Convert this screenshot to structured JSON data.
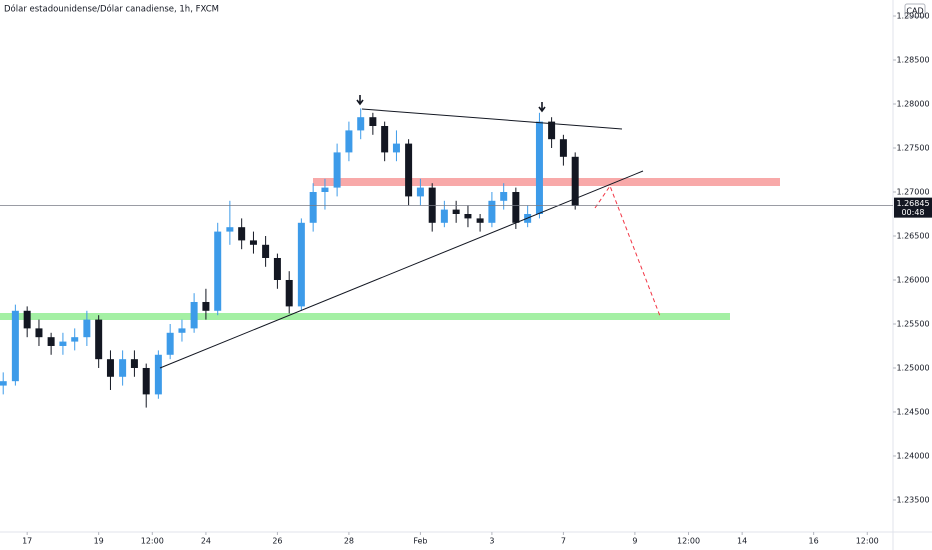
{
  "chart_data": {
    "type": "candlestick",
    "title": "Dólar estadounidense/Dólar canadiense, 1h, FXCM",
    "currency": "CAD",
    "countdown": "00:48",
    "up_color": "#3d9be9",
    "down_color": "#131722",
    "x": [
      -0.67,
      -0.33,
      0,
      0.33,
      0.67,
      1,
      1.33,
      1.67,
      2,
      2.33,
      2.67,
      3,
      3.33,
      3.67,
      4,
      4.33,
      4.67,
      5,
      5.33,
      5.67,
      6,
      6.33,
      6.67,
      7,
      7.33,
      7.67,
      8,
      8.33,
      8.67,
      9,
      9.33,
      9.67,
      10,
      10.33,
      10.67,
      11,
      11.33,
      11.67,
      12,
      12.33,
      12.67,
      13,
      13.33,
      13.67,
      14,
      14.33,
      14.67,
      15,
      15.33
    ],
    "open": [
      1.248,
      1.2485,
      1.2565,
      1.2545,
      1.2535,
      1.2525,
      1.253,
      1.2535,
      1.2555,
      1.251,
      1.249,
      1.251,
      1.25,
      1.247,
      1.2515,
      1.254,
      1.2545,
      1.2575,
      1.2565,
      1.2655,
      1.266,
      1.2645,
      1.264,
      1.2625,
      1.26,
      1.257,
      1.2665,
      1.27,
      1.2705,
      1.2745,
      1.277,
      1.2785,
      1.2775,
      1.2745,
      1.2755,
      1.2695,
      1.2705,
      1.2665,
      1.268,
      1.2675,
      1.267,
      1.2665,
      1.269,
      1.27,
      1.2665,
      1.2675,
      1.278,
      1.276,
      1.274
    ],
    "high": [
      1.2495,
      1.2572,
      1.257,
      1.2555,
      1.254,
      1.254,
      1.2545,
      1.2565,
      1.256,
      1.252,
      1.252,
      1.252,
      1.2505,
      1.252,
      1.255,
      1.2555,
      1.2585,
      1.259,
      1.2665,
      1.269,
      1.267,
      1.2655,
      1.265,
      1.263,
      1.261,
      1.267,
      1.271,
      1.2715,
      1.2755,
      1.278,
      1.2795,
      1.279,
      1.278,
      1.277,
      1.276,
      1.2715,
      1.271,
      1.269,
      1.269,
      1.2685,
      1.2675,
      1.27,
      1.271,
      1.2705,
      1.2685,
      1.279,
      1.2785,
      1.2765,
      1.2745
    ],
    "low": [
      1.247,
      1.248,
      1.2535,
      1.2525,
      1.2515,
      1.2515,
      1.252,
      1.2525,
      1.25,
      1.2475,
      1.248,
      1.249,
      1.2455,
      1.2465,
      1.251,
      1.253,
      1.254,
      1.2555,
      1.256,
      1.264,
      1.2635,
      1.263,
      1.2615,
      1.259,
      1.2562,
      1.2565,
      1.2655,
      1.268,
      1.2695,
      1.2735,
      1.276,
      1.2765,
      1.2735,
      1.2735,
      1.2685,
      1.2685,
      1.2655,
      1.266,
      1.2665,
      1.266,
      1.2655,
      1.266,
      1.268,
      1.2658,
      1.266,
      1.267,
      1.275,
      1.273,
      1.268
    ],
    "close": [
      1.2485,
      1.2565,
      1.2545,
      1.2535,
      1.2525,
      1.253,
      1.2535,
      1.2555,
      1.251,
      1.249,
      1.251,
      1.25,
      1.247,
      1.2515,
      1.254,
      1.2545,
      1.2575,
      1.2565,
      1.2655,
      1.266,
      1.2645,
      1.264,
      1.2625,
      1.26,
      1.257,
      1.2665,
      1.27,
      1.2705,
      1.2745,
      1.277,
      1.2785,
      1.2775,
      1.2745,
      1.2755,
      1.2695,
      1.2705,
      1.2665,
      1.268,
      1.2675,
      1.267,
      1.2665,
      1.269,
      1.27,
      1.2665,
      1.2675,
      1.278,
      1.276,
      1.274,
      1.26845
    ],
    "xlim": [
      -0.76,
      24.22
    ],
    "xticks": [
      {
        "value": 0,
        "label": "17"
      },
      {
        "value": 2,
        "label": "19"
      },
      {
        "value": 3.5,
        "label": "12:00"
      },
      {
        "value": 5,
        "label": "24"
      },
      {
        "value": 7,
        "label": "26"
      },
      {
        "value": 9,
        "label": "28"
      },
      {
        "value": 11,
        "label": "Feb"
      },
      {
        "value": 13,
        "label": "3"
      },
      {
        "value": 15,
        "label": "7"
      },
      {
        "value": 17,
        "label": "9"
      },
      {
        "value": 18.5,
        "label": "12:00"
      },
      {
        "value": 20,
        "label": "14"
      },
      {
        "value": 22,
        "label": "16"
      },
      {
        "value": 23.5,
        "label": "12:00"
      }
    ],
    "ylim": [
      1.23136,
      1.29182
    ],
    "yticks": [
      {
        "value": 1.29,
        "label": "1.29000"
      },
      {
        "value": 1.285,
        "label": "1.28500"
      },
      {
        "value": 1.28,
        "label": "1.28000"
      },
      {
        "value": 1.275,
        "label": "1.27500"
      },
      {
        "value": 1.27,
        "label": "1.27000"
      },
      {
        "value": 1.265,
        "label": "1.26500"
      },
      {
        "value": 1.26,
        "label": "1.26000"
      },
      {
        "value": 1.255,
        "label": "1.25500"
      },
      {
        "value": 1.25,
        "label": "1.25000"
      },
      {
        "value": 1.245,
        "label": "1.24500"
      },
      {
        "value": 1.24,
        "label": "1.24000"
      },
      {
        "value": 1.235,
        "label": "1.23500"
      }
    ]
  }
}
